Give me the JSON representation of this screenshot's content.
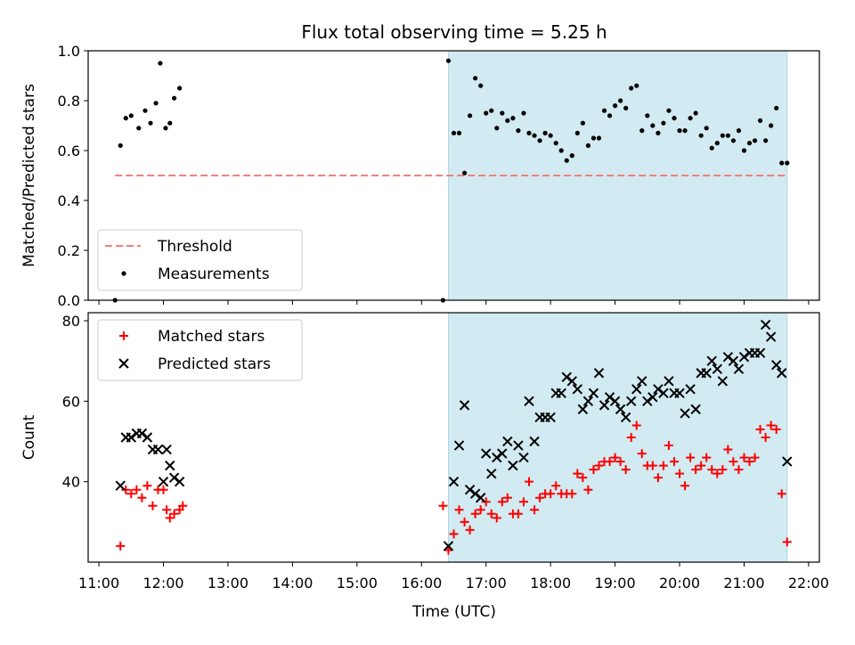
{
  "chart_data": {
    "type": "scatter",
    "title": "Flux total observing time = 5.25 h",
    "xlabel": "Time (UTC)",
    "xlim": [
      "10:50",
      "22:10"
    ],
    "xticks": [
      "11:00",
      "12:00",
      "13:00",
      "14:00",
      "15:00",
      "16:00",
      "17:00",
      "18:00",
      "19:00",
      "20:00",
      "21:00",
      "22:00"
    ],
    "shaded_interval": {
      "start": "16:25",
      "end": "21:40",
      "color": "#add8e6"
    },
    "panels": [
      {
        "ylabel": "Matched/Predicted stars",
        "ylim": [
          0,
          1
        ],
        "yticks": [
          "0.0",
          "0.2",
          "0.4",
          "0.6",
          "0.8",
          "1.0"
        ],
        "legend_position": "lower-left",
        "threshold": {
          "name": "Threshold",
          "value": 0.5,
          "x_range": [
            "11:15",
            "21:40"
          ],
          "color": "#f08080"
        },
        "series": [
          {
            "name": "Measurements",
            "color": "#000000",
            "marker": "dot",
            "points": [
              [
                "11:15",
                0.0
              ],
              [
                "11:20",
                0.62
              ],
              [
                "11:25",
                0.73
              ],
              [
                "11:30",
                0.74
              ],
              [
                "11:37",
                0.69
              ],
              [
                "11:43",
                0.76
              ],
              [
                "11:48",
                0.71
              ],
              [
                "11:53",
                0.79
              ],
              [
                "11:57",
                0.95
              ],
              [
                "12:02",
                0.69
              ],
              [
                "12:06",
                0.71
              ],
              [
                "12:10",
                0.81
              ],
              [
                "12:15",
                0.85
              ],
              [
                "16:20",
                0.0
              ],
              [
                "16:25",
                0.96
              ],
              [
                "16:30",
                0.67
              ],
              [
                "16:35",
                0.67
              ],
              [
                "16:40",
                0.51
              ],
              [
                "16:45",
                0.74
              ],
              [
                "16:50",
                0.89
              ],
              [
                "16:55",
                0.86
              ],
              [
                "17:00",
                0.75
              ],
              [
                "17:05",
                0.76
              ],
              [
                "17:10",
                0.69
              ],
              [
                "17:15",
                0.75
              ],
              [
                "17:20",
                0.72
              ],
              [
                "17:25",
                0.73
              ],
              [
                "17:30",
                0.68
              ],
              [
                "17:35",
                0.75
              ],
              [
                "17:40",
                0.67
              ],
              [
                "17:45",
                0.66
              ],
              [
                "17:50",
                0.64
              ],
              [
                "17:55",
                0.67
              ],
              [
                "18:00",
                0.66
              ],
              [
                "18:05",
                0.63
              ],
              [
                "18:10",
                0.6
              ],
              [
                "18:15",
                0.56
              ],
              [
                "18:20",
                0.58
              ],
              [
                "18:25",
                0.67
              ],
              [
                "18:30",
                0.71
              ],
              [
                "18:35",
                0.62
              ],
              [
                "18:40",
                0.65
              ],
              [
                "18:45",
                0.65
              ],
              [
                "18:50",
                0.76
              ],
              [
                "18:55",
                0.74
              ],
              [
                "19:00",
                0.78
              ],
              [
                "19:05",
                0.8
              ],
              [
                "19:10",
                0.77
              ],
              [
                "19:15",
                0.85
              ],
              [
                "19:20",
                0.86
              ],
              [
                "19:25",
                0.68
              ],
              [
                "19:30",
                0.74
              ],
              [
                "19:35",
                0.7
              ],
              [
                "19:40",
                0.67
              ],
              [
                "19:45",
                0.71
              ],
              [
                "19:50",
                0.76
              ],
              [
                "19:55",
                0.73
              ],
              [
                "20:00",
                0.68
              ],
              [
                "20:05",
                0.68
              ],
              [
                "20:10",
                0.73
              ],
              [
                "20:15",
                0.75
              ],
              [
                "20:20",
                0.66
              ],
              [
                "20:25",
                0.69
              ],
              [
                "20:30",
                0.61
              ],
              [
                "20:35",
                0.63
              ],
              [
                "20:40",
                0.66
              ],
              [
                "20:45",
                0.66
              ],
              [
                "20:50",
                0.64
              ],
              [
                "20:55",
                0.68
              ],
              [
                "21:00",
                0.6
              ],
              [
                "21:05",
                0.63
              ],
              [
                "21:10",
                0.64
              ],
              [
                "21:15",
                0.72
              ],
              [
                "21:20",
                0.64
              ],
              [
                "21:25",
                0.7
              ],
              [
                "21:30",
                0.77
              ],
              [
                "21:35",
                0.55
              ],
              [
                "21:40",
                0.55
              ]
            ]
          }
        ]
      },
      {
        "ylabel": "Count",
        "ylim": [
          20,
          82
        ],
        "yticks": [
          "40",
          "60",
          "80"
        ],
        "legend_position": "upper-left",
        "series": [
          {
            "name": "Matched stars",
            "color": "#ff0000",
            "marker": "plus",
            "points": [
              [
                "11:20",
                24
              ],
              [
                "11:25",
                38
              ],
              [
                "11:30",
                37
              ],
              [
                "11:35",
                38
              ],
              [
                "11:40",
                36
              ],
              [
                "11:45",
                39
              ],
              [
                "11:50",
                34
              ],
              [
                "11:55",
                38
              ],
              [
                "12:00",
                38
              ],
              [
                "12:03",
                33
              ],
              [
                "12:06",
                31
              ],
              [
                "12:10",
                32
              ],
              [
                "12:15",
                33
              ],
              [
                "12:18",
                34
              ],
              [
                "16:20",
                34
              ],
              [
                "16:25",
                23
              ],
              [
                "16:30",
                27
              ],
              [
                "16:35",
                33
              ],
              [
                "16:40",
                30
              ],
              [
                "16:45",
                28
              ],
              [
                "16:50",
                32
              ],
              [
                "16:55",
                33
              ],
              [
                "17:00",
                35
              ],
              [
                "17:05",
                32
              ],
              [
                "17:10",
                31
              ],
              [
                "17:15",
                35
              ],
              [
                "17:20",
                36
              ],
              [
                "17:25",
                32
              ],
              [
                "17:30",
                32
              ],
              [
                "17:35",
                35
              ],
              [
                "17:40",
                40
              ],
              [
                "17:45",
                33
              ],
              [
                "17:50",
                36
              ],
              [
                "17:55",
                37
              ],
              [
                "18:00",
                37
              ],
              [
                "18:05",
                39
              ],
              [
                "18:10",
                37
              ],
              [
                "18:15",
                37
              ],
              [
                "18:20",
                37
              ],
              [
                "18:25",
                42
              ],
              [
                "18:30",
                41
              ],
              [
                "18:35",
                38
              ],
              [
                "18:40",
                43
              ],
              [
                "18:45",
                44
              ],
              [
                "18:50",
                45
              ],
              [
                "18:55",
                45
              ],
              [
                "19:00",
                46
              ],
              [
                "19:05",
                45
              ],
              [
                "19:10",
                43
              ],
              [
                "19:15",
                51
              ],
              [
                "19:20",
                54
              ],
              [
                "19:25",
                47
              ],
              [
                "19:30",
                44
              ],
              [
                "19:35",
                44
              ],
              [
                "19:40",
                41
              ],
              [
                "19:45",
                44
              ],
              [
                "19:50",
                49
              ],
              [
                "19:55",
                45
              ],
              [
                "20:00",
                42
              ],
              [
                "20:05",
                39
              ],
              [
                "20:10",
                46
              ],
              [
                "20:15",
                43
              ],
              [
                "20:20",
                44
              ],
              [
                "20:25",
                46
              ],
              [
                "20:30",
                43
              ],
              [
                "20:35",
                42
              ],
              [
                "20:40",
                43
              ],
              [
                "20:45",
                48
              ],
              [
                "20:50",
                45
              ],
              [
                "20:55",
                43
              ],
              [
                "21:00",
                46
              ],
              [
                "21:05",
                45
              ],
              [
                "21:10",
                46
              ],
              [
                "21:15",
                53
              ],
              [
                "21:20",
                51
              ],
              [
                "21:25",
                54
              ],
              [
                "21:30",
                53
              ],
              [
                "21:35",
                37
              ],
              [
                "21:40",
                25
              ]
            ]
          },
          {
            "name": "Predicted stars",
            "color": "#000000",
            "marker": "x",
            "points": [
              [
                "11:20",
                39
              ],
              [
                "11:25",
                51
              ],
              [
                "11:30",
                51
              ],
              [
                "11:35",
                52
              ],
              [
                "11:40",
                52
              ],
              [
                "11:45",
                51
              ],
              [
                "11:50",
                48
              ],
              [
                "11:55",
                48
              ],
              [
                "12:00",
                40
              ],
              [
                "12:03",
                48
              ],
              [
                "12:06",
                44
              ],
              [
                "12:10",
                41
              ],
              [
                "12:15",
                40
              ],
              [
                "16:25",
                24
              ],
              [
                "16:30",
                40
              ],
              [
                "16:35",
                49
              ],
              [
                "16:40",
                59
              ],
              [
                "16:45",
                38
              ],
              [
                "16:50",
                37
              ],
              [
                "16:55",
                36
              ],
              [
                "17:00",
                47
              ],
              [
                "17:05",
                42
              ],
              [
                "17:10",
                46
              ],
              [
                "17:15",
                47
              ],
              [
                "17:20",
                50
              ],
              [
                "17:25",
                44
              ],
              [
                "17:30",
                49
              ],
              [
                "17:35",
                46
              ],
              [
                "17:40",
                60
              ],
              [
                "17:45",
                50
              ],
              [
                "17:50",
                56
              ],
              [
                "17:55",
                56
              ],
              [
                "18:00",
                56
              ],
              [
                "18:05",
                62
              ],
              [
                "18:10",
                62
              ],
              [
                "18:15",
                66
              ],
              [
                "18:20",
                65
              ],
              [
                "18:25",
                63
              ],
              [
                "18:30",
                58
              ],
              [
                "18:35",
                60
              ],
              [
                "18:40",
                62
              ],
              [
                "18:45",
                67
              ],
              [
                "18:50",
                59
              ],
              [
                "18:55",
                61
              ],
              [
                "19:00",
                60
              ],
              [
                "19:05",
                58
              ],
              [
                "19:10",
                56
              ],
              [
                "19:15",
                60
              ],
              [
                "19:20",
                63
              ],
              [
                "19:25",
                65
              ],
              [
                "19:30",
                60
              ],
              [
                "19:35",
                61
              ],
              [
                "19:40",
                63
              ],
              [
                "19:45",
                62
              ],
              [
                "19:50",
                65
              ],
              [
                "19:55",
                62
              ],
              [
                "20:00",
                62
              ],
              [
                "20:05",
                57
              ],
              [
                "20:10",
                63
              ],
              [
                "20:15",
                58
              ],
              [
                "20:20",
                67
              ],
              [
                "20:25",
                67
              ],
              [
                "20:30",
                70
              ],
              [
                "20:35",
                68
              ],
              [
                "20:40",
                65
              ],
              [
                "20:45",
                71
              ],
              [
                "20:50",
                70
              ],
              [
                "20:55",
                68
              ],
              [
                "21:00",
                71
              ],
              [
                "21:05",
                72
              ],
              [
                "21:10",
                72
              ],
              [
                "21:15",
                72
              ],
              [
                "21:20",
                79
              ],
              [
                "21:25",
                76
              ],
              [
                "21:30",
                69
              ],
              [
                "21:35",
                67
              ],
              [
                "21:40",
                45
              ]
            ]
          }
        ]
      }
    ]
  }
}
